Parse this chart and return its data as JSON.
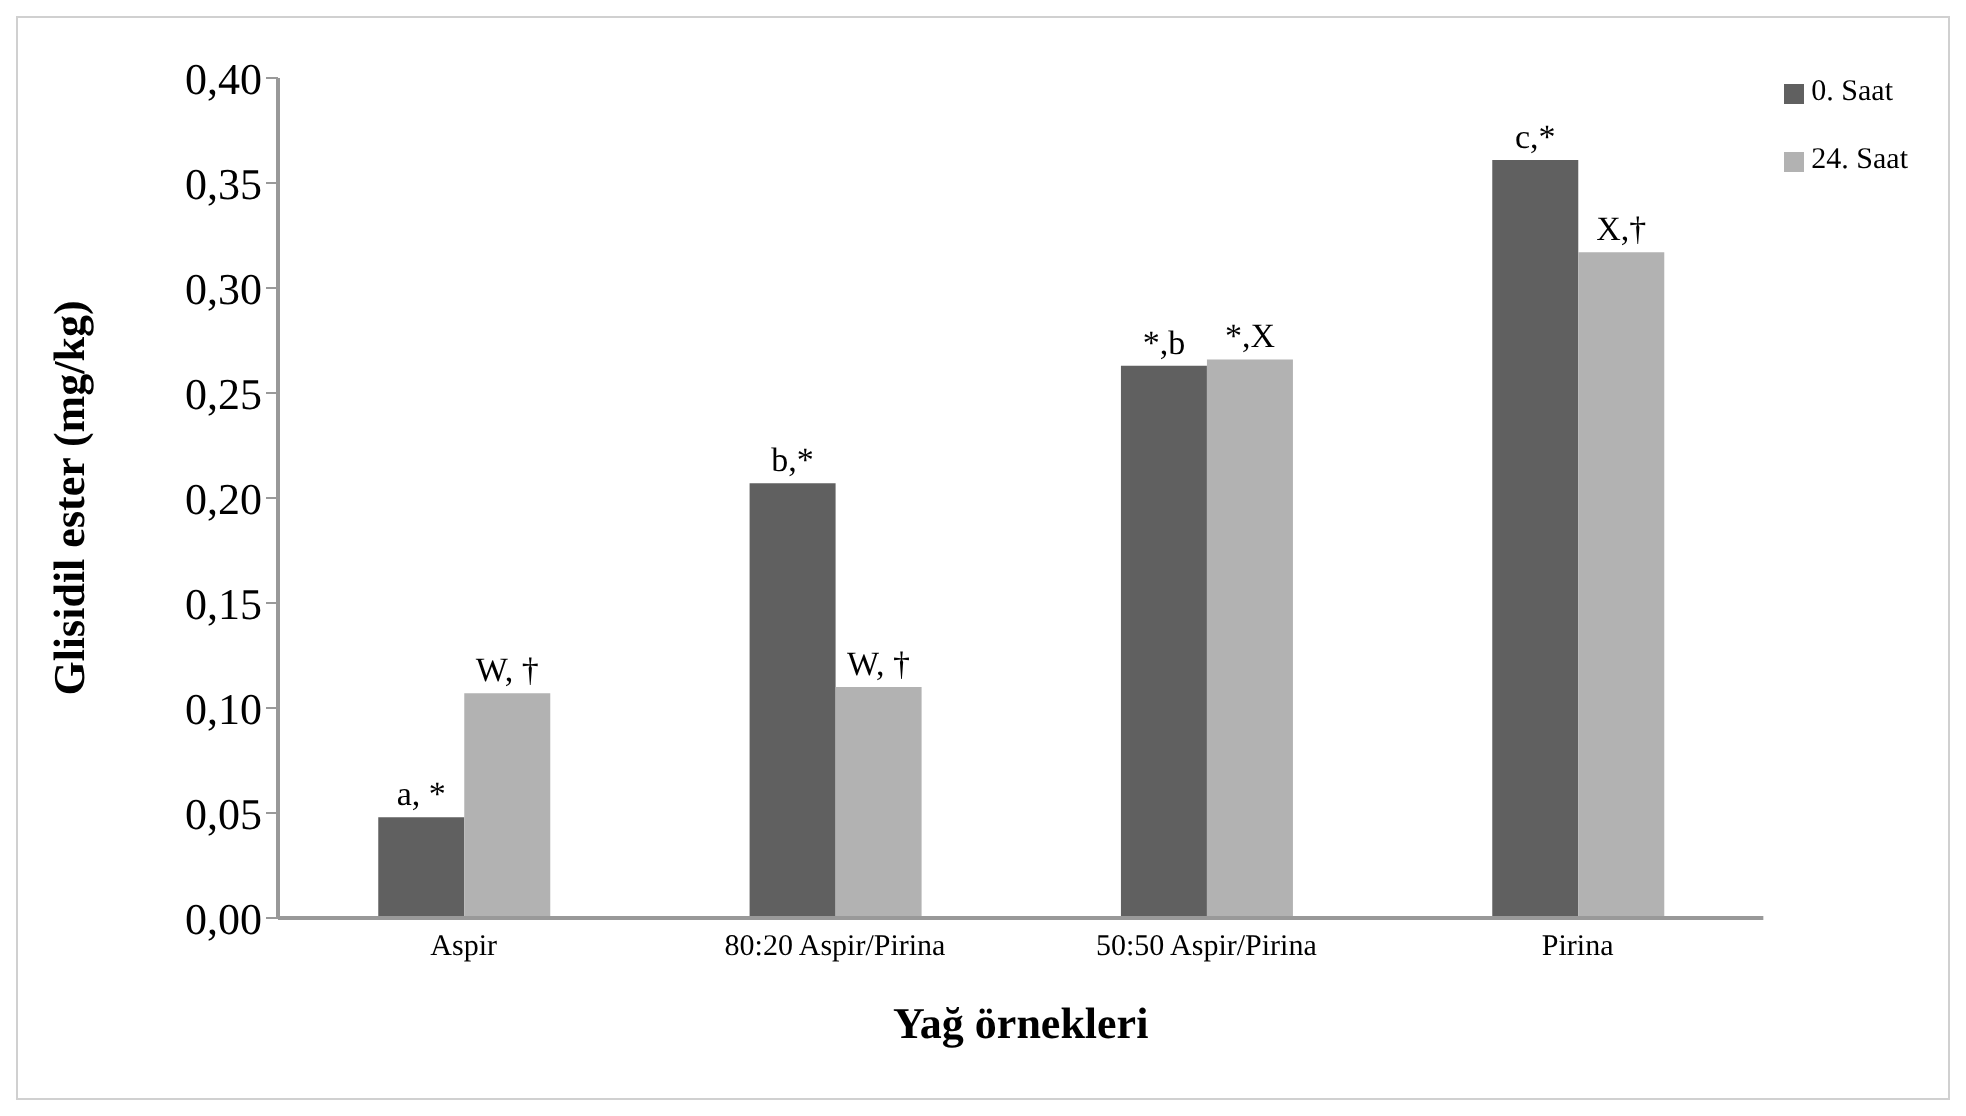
{
  "chart_data": {
    "type": "bar",
    "xlabel": "Yağ örnekleri",
    "ylabel": "Glisidil ester (mg/kg)",
    "categories": [
      "Aspir",
      "80:20 Aspir/Pirina",
      "50:50 Aspir/Pirina",
      "Pirina"
    ],
    "series": [
      {
        "name": "0. Saat",
        "color": "#606060",
        "values": [
          0.048,
          0.207,
          0.263,
          0.361
        ],
        "value_labels": [
          "a, *",
          "b,*",
          "*,b",
          "c,*"
        ]
      },
      {
        "name": "24. Saat",
        "color": "#b2b2b2",
        "values": [
          0.107,
          0.11,
          0.266,
          0.317
        ],
        "value_labels": [
          "W, †",
          "W, †",
          "*,X",
          "X,†"
        ]
      }
    ],
    "ylim": [
      0,
      0.4
    ],
    "yticks": [
      {
        "value": 0,
        "label": "0,00"
      },
      {
        "value": 0.05,
        "label": "0,05"
      },
      {
        "value": 0.1,
        "label": "0,10"
      },
      {
        "value": 0.15,
        "label": "0,15"
      },
      {
        "value": 0.2,
        "label": "0,20"
      },
      {
        "value": 0.25,
        "label": "0,25"
      },
      {
        "value": 0.3,
        "label": "0,30"
      },
      {
        "value": 0.35,
        "label": "0,35"
      },
      {
        "value": 0.4,
        "label": "0,40"
      }
    ],
    "legend": "top right"
  }
}
